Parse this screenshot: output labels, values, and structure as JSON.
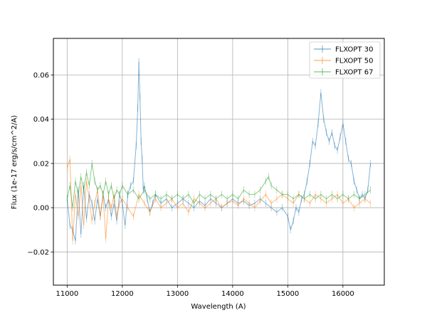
{
  "chart_data": {
    "type": "line",
    "title": "",
    "xlabel": "Wavelength (A)",
    "ylabel": "Flux (1e-17 erg/s/cm^2/A)",
    "xlim": [
      10750,
      16750
    ],
    "ylim": [
      -0.035,
      0.0765
    ],
    "x_ticks": [
      11000,
      12000,
      13000,
      14000,
      15000,
      16000
    ],
    "y_ticks": [
      -0.02,
      0.0,
      0.02,
      0.04,
      0.06
    ],
    "x_tick_labels": [
      "11000",
      "12000",
      "13000",
      "14000",
      "15000",
      "16000"
    ],
    "y_tick_labels": [
      "−0.02",
      "0.00",
      "0.02",
      "0.04",
      "0.06"
    ],
    "grid": true,
    "legend_position": "top-right",
    "series": [
      {
        "name": "FLXOPT 30",
        "color": "#1f77b4",
        "x": [
          11000,
          11050,
          11100,
          11150,
          11200,
          11250,
          11300,
          11350,
          11400,
          11450,
          11500,
          11550,
          11600,
          11650,
          11700,
          11750,
          11800,
          11850,
          11900,
          11950,
          12000,
          12050,
          12100,
          12150,
          12200,
          12250,
          12280,
          12300,
          12320,
          12340,
          12360,
          12380,
          12400,
          12450,
          12500,
          12550,
          12600,
          12700,
          12800,
          12900,
          13000,
          13100,
          13200,
          13300,
          13400,
          13500,
          13600,
          13700,
          13800,
          13900,
          14000,
          14100,
          14200,
          14300,
          14400,
          14500,
          14600,
          14700,
          14800,
          14900,
          15000,
          15050,
          15100,
          15150,
          15200,
          15250,
          15300,
          15350,
          15400,
          15450,
          15500,
          15550,
          15600,
          15650,
          15700,
          15750,
          15800,
          15850,
          15900,
          15950,
          16000,
          16050,
          16100,
          16150,
          16200,
          16250,
          16300,
          16350,
          16400,
          16450,
          16500
        ],
        "y": [
          0.004,
          -0.008,
          -0.01,
          -0.015,
          0.008,
          -0.012,
          0.01,
          -0.005,
          0.006,
          0.002,
          -0.006,
          0.004,
          -0.004,
          0.006,
          0.0,
          0.004,
          -0.004,
          0.002,
          -0.006,
          0.006,
          0.002,
          -0.008,
          0.006,
          0.01,
          0.012,
          0.028,
          0.045,
          0.066,
          0.05,
          0.03,
          0.022,
          0.008,
          0.01,
          0.004,
          -0.002,
          0.002,
          0.006,
          0.002,
          0.004,
          0.0,
          0.002,
          0.004,
          0.002,
          0.0,
          0.003,
          0.001,
          0.004,
          0.002,
          0.0,
          0.002,
          0.004,
          0.002,
          0.003,
          0.001,
          0.002,
          0.004,
          0.002,
          0.0,
          -0.002,
          0.0,
          -0.004,
          -0.01,
          -0.006,
          0.0,
          -0.002,
          0.004,
          0.006,
          0.012,
          0.02,
          0.03,
          0.028,
          0.038,
          0.052,
          0.04,
          0.034,
          0.03,
          0.034,
          0.028,
          0.026,
          0.032,
          0.038,
          0.03,
          0.022,
          0.02,
          0.012,
          0.008,
          0.004,
          0.006,
          0.004,
          0.008,
          0.02
        ]
      },
      {
        "name": "FLXOPT 50",
        "color": "#ff7f0e",
        "x": [
          11000,
          11050,
          11100,
          11150,
          11200,
          11250,
          11300,
          11350,
          11400,
          11450,
          11500,
          11550,
          11600,
          11650,
          11700,
          11750,
          11800,
          11850,
          11900,
          11950,
          12000,
          12100,
          12200,
          12300,
          12400,
          12500,
          12600,
          12700,
          12800,
          12900,
          13000,
          13100,
          13200,
          13300,
          13400,
          13500,
          13600,
          13700,
          13800,
          13900,
          14000,
          14100,
          14200,
          14300,
          14400,
          14500,
          14600,
          14700,
          14800,
          14900,
          15000,
          15100,
          15200,
          15300,
          15400,
          15500,
          15600,
          15700,
          15800,
          15900,
          16000,
          16100,
          16200,
          16300,
          16400,
          16500
        ],
        "y": [
          0.018,
          0.022,
          -0.015,
          0.006,
          -0.004,
          0.01,
          -0.008,
          0.012,
          0.004,
          -0.006,
          0.002,
          0.008,
          -0.004,
          0.006,
          -0.014,
          0.004,
          0.0,
          0.006,
          -0.004,
          0.002,
          0.004,
          0.0,
          -0.004,
          0.006,
          0.002,
          -0.002,
          0.004,
          0.0,
          0.002,
          0.004,
          0.0,
          0.002,
          -0.002,
          0.004,
          0.002,
          0.0,
          0.002,
          0.004,
          0.0,
          0.002,
          0.003,
          0.001,
          0.004,
          0.002,
          0.0,
          0.003,
          0.006,
          0.002,
          0.004,
          0.006,
          0.004,
          0.002,
          0.006,
          0.004,
          0.002,
          0.006,
          0.004,
          0.002,
          0.004,
          0.006,
          0.002,
          0.004,
          0.0,
          0.002,
          0.004,
          0.002
        ]
      },
      {
        "name": "FLXOPT 67",
        "color": "#2ca02c",
        "x": [
          11000,
          11050,
          11100,
          11150,
          11200,
          11250,
          11300,
          11350,
          11400,
          11450,
          11500,
          11550,
          11600,
          11650,
          11700,
          11750,
          11800,
          11850,
          11900,
          11950,
          12000,
          12100,
          12200,
          12300,
          12400,
          12500,
          12600,
          12700,
          12800,
          12900,
          13000,
          13100,
          13200,
          13300,
          13400,
          13500,
          13600,
          13700,
          13800,
          13900,
          14000,
          14100,
          14200,
          14300,
          14400,
          14500,
          14600,
          14650,
          14700,
          14800,
          14900,
          15000,
          15100,
          15200,
          15300,
          15400,
          15500,
          15600,
          15700,
          15800,
          15900,
          16000,
          16100,
          16200,
          16300,
          16400,
          16500
        ],
        "y": [
          0.004,
          0.01,
          0.0,
          0.012,
          0.006,
          0.014,
          0.008,
          0.016,
          0.01,
          0.02,
          0.012,
          0.008,
          0.01,
          0.006,
          0.012,
          0.006,
          0.01,
          0.004,
          0.008,
          0.006,
          0.01,
          0.006,
          0.008,
          0.004,
          0.008,
          0.004,
          0.006,
          0.004,
          0.006,
          0.004,
          0.006,
          0.004,
          0.006,
          0.002,
          0.006,
          0.004,
          0.006,
          0.004,
          0.006,
          0.004,
          0.006,
          0.004,
          0.008,
          0.006,
          0.006,
          0.008,
          0.012,
          0.014,
          0.01,
          0.008,
          0.006,
          0.006,
          0.004,
          0.006,
          0.004,
          0.006,
          0.004,
          0.006,
          0.004,
          0.006,
          0.004,
          0.006,
          0.004,
          0.006,
          0.004,
          0.006,
          0.008
        ]
      }
    ]
  }
}
